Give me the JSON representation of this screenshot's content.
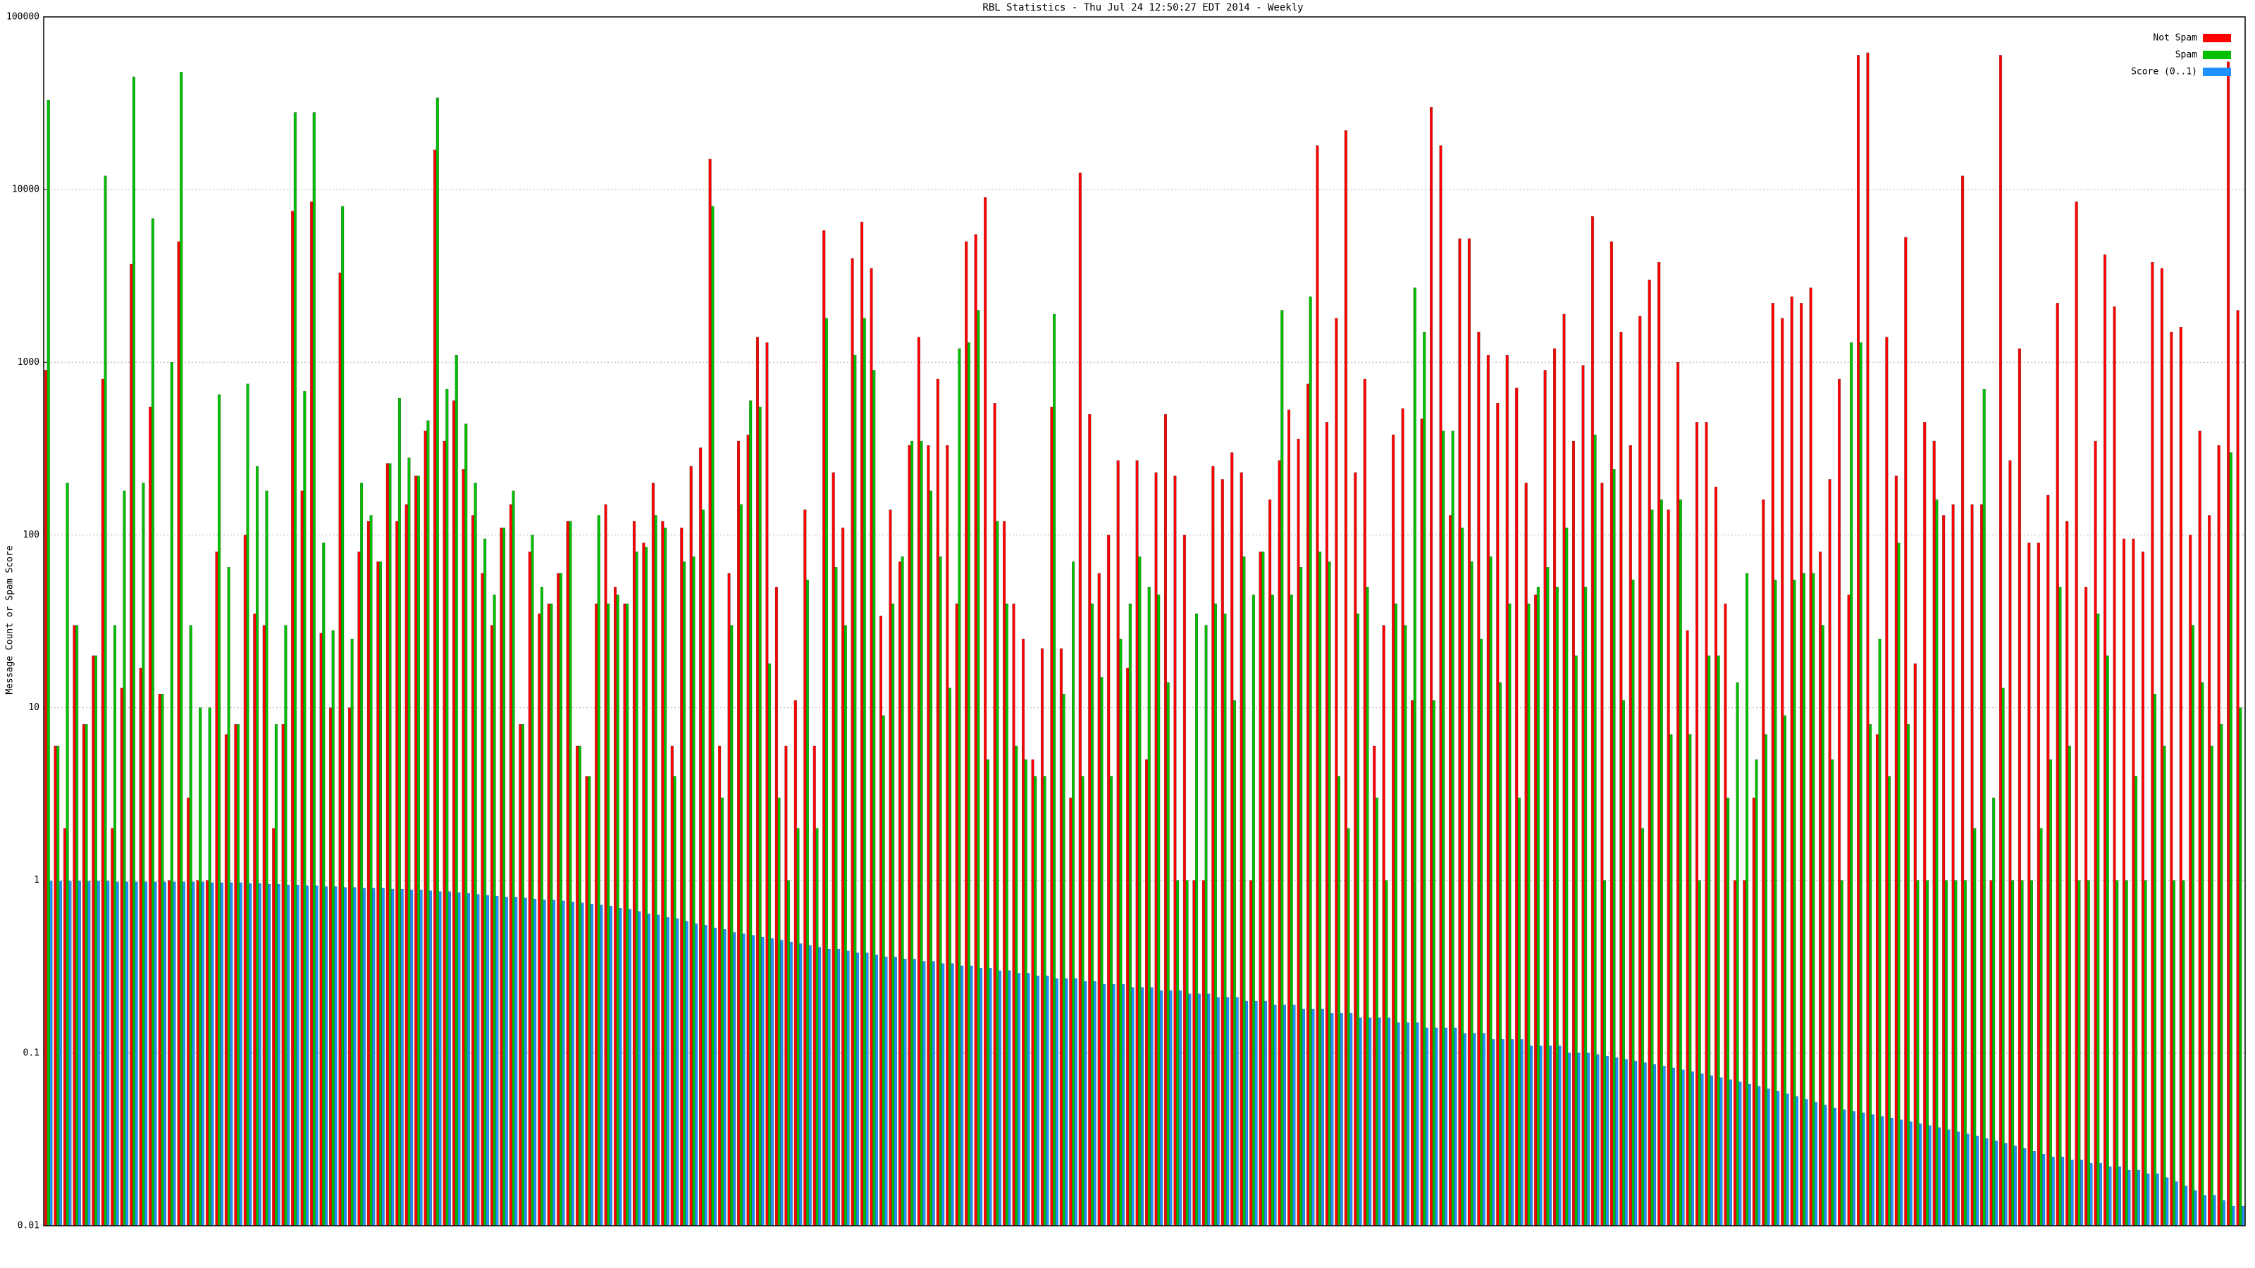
{
  "chart_data": {
    "type": "bar",
    "title": "RBL Statistics - Thu Jul 24 12:50:27 EDT 2014 - Weekly",
    "y_label": "Message Count or Spam Score",
    "log_scale": true,
    "grid": true,
    "legend_position": "top-right",
    "ylim": [
      0.01,
      100000
    ],
    "yticks": [
      0.01,
      0.1,
      1,
      10,
      100,
      1000,
      10000,
      100000
    ],
    "series": [
      {
        "name": "Not Spam",
        "color": "#ff0000",
        "values": [
          900,
          6,
          2,
          30,
          8,
          20,
          800,
          2,
          13,
          3700,
          17,
          550,
          12,
          1,
          5000,
          3,
          1,
          1,
          80,
          7,
          8,
          100,
          35,
          30,
          2,
          8,
          7500,
          180,
          8500,
          27,
          10,
          3300,
          10,
          80,
          120,
          70,
          260,
          120,
          150,
          220,
          400,
          17000,
          350,
          600,
          240,
          130,
          60,
          30,
          110,
          150,
          8,
          80,
          35,
          40,
          60,
          120,
          6,
          4,
          40,
          150,
          50,
          40,
          120,
          90,
          200,
          120,
          6,
          110,
          250,
          320,
          15000,
          6,
          60,
          350,
          380,
          1400,
          1300,
          50,
          6,
          11,
          140,
          6,
          5800,
          230,
          110,
          4000,
          6500,
          3500,
          34,
          140,
          70,
          330,
          1400,
          330,
          800,
          330,
          40,
          5000,
          5500,
          9000,
          580,
          120,
          40,
          25,
          5,
          22,
          550,
          22,
          3,
          12500,
          500,
          60,
          100,
          270,
          17,
          270,
          5,
          230,
          500,
          220,
          100,
          1,
          1,
          250,
          210,
          300,
          230,
          1,
          80,
          160,
          270,
          530,
          360,
          750,
          18000,
          450,
          1800,
          22000,
          230,
          800,
          6,
          30,
          380,
          540,
          11,
          470,
          30000,
          18000,
          130,
          5200,
          5200,
          1500,
          1100,
          580,
          1100,
          710,
          200,
          45,
          900,
          1200,
          1900,
          350,
          960,
          7000,
          200,
          5000,
          1500,
          330,
          1850,
          3000,
          3800,
          140,
          1000,
          28,
          450,
          450,
          190,
          40,
          1,
          1,
          3,
          160,
          2200,
          1800,
          2400,
          2200,
          2700,
          80,
          210,
          800,
          45,
          60000,
          62000,
          7,
          1400,
          220,
          5300,
          18,
          450,
          350,
          130,
          150,
          12000,
          150,
          150,
          1,
          60000,
          270,
          1200,
          90,
          90,
          170,
          2200,
          120,
          8500,
          50,
          350,
          4200,
          2100,
          95,
          95,
          80,
          3800,
          3500,
          1500,
          1600,
          100,
          400,
          130,
          330,
          55000,
          2000
        ]
      },
      {
        "name": "Spam",
        "color": "#00c000",
        "values": [
          33000,
          6,
          200,
          30,
          8,
          20,
          12000,
          30,
          180,
          45000,
          200,
          6800,
          12,
          1000,
          48000,
          30,
          10,
          10,
          650,
          65,
          8,
          750,
          250,
          180,
          8,
          30,
          28000,
          680,
          28000,
          90,
          28,
          8000,
          25,
          200,
          130,
          70,
          260,
          620,
          280,
          220,
          460,
          34000,
          700,
          1100,
          440,
          200,
          95,
          45,
          110,
          180,
          8,
          100,
          50,
          40,
          60,
          120,
          6,
          4,
          130,
          40,
          45,
          40,
          80,
          85,
          130,
          110,
          4,
          70,
          75,
          140,
          8000,
          3,
          30,
          150,
          600,
          550,
          18,
          3,
          1,
          2,
          55,
          2,
          1800,
          65,
          30,
          1100,
          1800,
          900,
          9,
          40,
          75,
          350,
          350,
          180,
          75,
          13,
          1200,
          1300,
          2000,
          5,
          120,
          40,
          6,
          5,
          4,
          4,
          1900,
          12,
          70,
          4,
          40,
          15,
          4,
          25,
          40,
          75,
          50,
          45,
          14,
          1,
          1,
          35,
          30,
          40,
          35,
          11,
          75,
          45,
          80,
          45,
          2000,
          45,
          65,
          2400,
          80,
          70,
          4,
          2,
          35,
          50,
          3,
          1,
          40,
          30,
          2700,
          1500,
          11,
          400,
          400,
          110,
          70,
          25,
          75,
          14,
          40,
          3,
          40,
          50,
          65,
          50,
          110,
          20,
          50,
          380,
          1,
          240,
          11,
          55,
          2,
          140,
          160,
          7,
          160,
          7,
          1,
          20,
          20,
          3,
          14,
          60,
          5,
          7,
          55,
          9,
          55,
          60,
          60,
          30,
          5,
          1,
          1300,
          1300,
          8,
          25,
          4,
          90,
          8,
          1,
          1,
          160,
          1,
          1,
          1,
          2,
          700,
          3,
          13,
          1,
          1,
          1,
          2,
          5,
          50,
          6,
          1,
          1,
          35,
          20,
          1,
          1,
          4,
          1,
          12,
          6,
          1,
          1,
          30,
          14,
          6,
          8,
          300,
          10
        ]
      },
      {
        "name": "Score (0..1)",
        "color": "#1e90ff",
        "values": [
          0.99,
          0.99,
          0.99,
          0.99,
          0.99,
          0.99,
          0.99,
          0.98,
          0.98,
          0.98,
          0.98,
          0.98,
          0.98,
          0.98,
          0.98,
          0.98,
          0.98,
          0.97,
          0.97,
          0.97,
          0.97,
          0.96,
          0.96,
          0.95,
          0.95,
          0.94,
          0.94,
          0.93,
          0.93,
          0.92,
          0.92,
          0.91,
          0.91,
          0.9,
          0.9,
          0.9,
          0.89,
          0.89,
          0.88,
          0.88,
          0.87,
          0.86,
          0.86,
          0.85,
          0.84,
          0.83,
          0.82,
          0.81,
          0.8,
          0.8,
          0.79,
          0.78,
          0.77,
          0.77,
          0.76,
          0.75,
          0.74,
          0.73,
          0.72,
          0.71,
          0.69,
          0.68,
          0.66,
          0.64,
          0.63,
          0.61,
          0.6,
          0.58,
          0.56,
          0.55,
          0.53,
          0.52,
          0.5,
          0.49,
          0.48,
          0.47,
          0.46,
          0.45,
          0.44,
          0.43,
          0.42,
          0.41,
          0.4,
          0.4,
          0.39,
          0.38,
          0.38,
          0.37,
          0.36,
          0.36,
          0.35,
          0.35,
          0.34,
          0.34,
          0.33,
          0.33,
          0.32,
          0.32,
          0.31,
          0.31,
          0.3,
          0.3,
          0.29,
          0.29,
          0.28,
          0.28,
          0.27,
          0.27,
          0.27,
          0.26,
          0.26,
          0.25,
          0.25,
          0.25,
          0.24,
          0.24,
          0.24,
          0.23,
          0.23,
          0.23,
          0.22,
          0.22,
          0.22,
          0.21,
          0.21,
          0.21,
          0.2,
          0.2,
          0.2,
          0.19,
          0.19,
          0.19,
          0.18,
          0.18,
          0.18,
          0.17,
          0.17,
          0.17,
          0.16,
          0.16,
          0.16,
          0.16,
          0.15,
          0.15,
          0.15,
          0.14,
          0.14,
          0.14,
          0.14,
          0.13,
          0.13,
          0.13,
          0.12,
          0.12,
          0.12,
          0.12,
          0.11,
          0.11,
          0.11,
          0.11,
          0.1,
          0.1,
          0.1,
          0.098,
          0.096,
          0.094,
          0.092,
          0.09,
          0.088,
          0.086,
          0.084,
          0.082,
          0.08,
          0.078,
          0.076,
          0.074,
          0.072,
          0.07,
          0.068,
          0.066,
          0.064,
          0.062,
          0.06,
          0.058,
          0.056,
          0.054,
          0.052,
          0.05,
          0.048,
          0.047,
          0.046,
          0.045,
          0.044,
          0.043,
          0.042,
          0.041,
          0.04,
          0.039,
          0.038,
          0.037,
          0.036,
          0.035,
          0.034,
          0.033,
          0.032,
          0.031,
          0.03,
          0.029,
          0.028,
          0.027,
          0.026,
          0.025,
          0.025,
          0.024,
          0.024,
          0.023,
          0.023,
          0.022,
          0.022,
          0.021,
          0.021,
          0.02,
          0.02,
          0.019,
          0.018,
          0.017,
          0.016,
          0.015,
          0.015,
          0.014,
          0.013,
          0.013
        ]
      }
    ]
  }
}
